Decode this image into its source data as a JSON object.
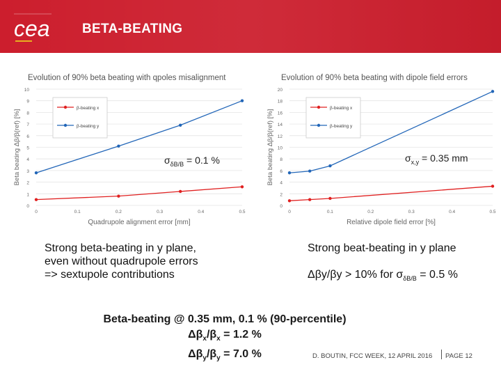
{
  "header": {
    "title": "BETA-BEATING",
    "logo_text": "cea"
  },
  "chart_data": [
    {
      "type": "line",
      "title": "Evolution of 90% beta beating with qpoles misalignment",
      "xlabel": "Quadrupole alignment error [mm]",
      "ylabel": "Beta beating Δβ/β(ref) [%]",
      "xlim": [
        0,
        0.5
      ],
      "ylim": [
        0,
        10
      ],
      "xticks": [
        "0",
        "0.1",
        "0.2",
        "0.3",
        "0.4",
        "0.5"
      ],
      "yticks": [
        "0",
        "1",
        "2",
        "3",
        "4",
        "5",
        "6",
        "7",
        "8",
        "9",
        "10"
      ],
      "legend": "top-left",
      "series": [
        {
          "name": "β-beating x",
          "color": "#e02020",
          "x": [
            0,
            0.2,
            0.35,
            0.5
          ],
          "values": [
            0.5,
            0.8,
            1.2,
            1.6
          ]
        },
        {
          "name": "β-beating y",
          "color": "#2266b8",
          "x": [
            0,
            0.2,
            0.35,
            0.5
          ],
          "values": [
            2.8,
            5.1,
            6.9,
            9.0
          ]
        }
      ]
    },
    {
      "type": "line",
      "title": "Evolution of 90% beta beating with dipole field errors",
      "xlabel": "Relative dipole field error [%]",
      "ylabel": "Beta beating Δβ/β(ref) [%]",
      "xlim": [
        0,
        0.5
      ],
      "ylim": [
        0,
        20
      ],
      "xticks": [
        "0",
        "0.1",
        "0.2",
        "0.3",
        "0.4",
        "0.5"
      ],
      "yticks": [
        "0",
        "2",
        "4",
        "6",
        "8",
        "10",
        "12",
        "14",
        "16",
        "18",
        "20"
      ],
      "legend": "top-left",
      "series": [
        {
          "name": "β-beating x",
          "color": "#e02020",
          "x": [
            0,
            0.05,
            0.1,
            0.5
          ],
          "values": [
            0.8,
            1.0,
            1.2,
            3.3
          ]
        },
        {
          "name": "β-beating y",
          "color": "#2266b8",
          "x": [
            0,
            0.05,
            0.1,
            0.5
          ],
          "values": [
            5.6,
            5.9,
            6.8,
            19.6
          ]
        }
      ]
    }
  ],
  "annotations": {
    "left_sigma_pre": "σ",
    "left_sigma_sub": "δB/B",
    "left_sigma_post": " = 0.1 %",
    "right_sigma_pre": "σ",
    "right_sigma_sub": "x,y",
    "right_sigma_post": " = 0.35 mm"
  },
  "body": {
    "left_lines": [
      "Strong beta-beating in y plane,",
      "even without quadrupole errors",
      "=> sextupole contributions"
    ],
    "right_line1": "Strong beat-beating in y plane",
    "right_line2_pre": "Δβy/βy > 10% for σ",
    "right_line2_sub": "δB/B",
    "right_line2_post": " = 0.5 %"
  },
  "summary": {
    "line1": "Beta-beating @ 0.35 mm, 0.1 % (90-percentile)",
    "line2_a": "Δβ",
    "line2_b": "x",
    "line2_c": "/β",
    "line2_d": "x",
    "line2_e": " = 1.2 %",
    "line3_a": "Δβ",
    "line3_b": "y",
    "line3_c": "/β",
    "line3_d": "y",
    "line3_e": " = 7.0 %"
  },
  "footer": {
    "text": "D. BOUTIN, FCC WEEK, 12 APRIL 2016",
    "page": "PAGE 12"
  }
}
